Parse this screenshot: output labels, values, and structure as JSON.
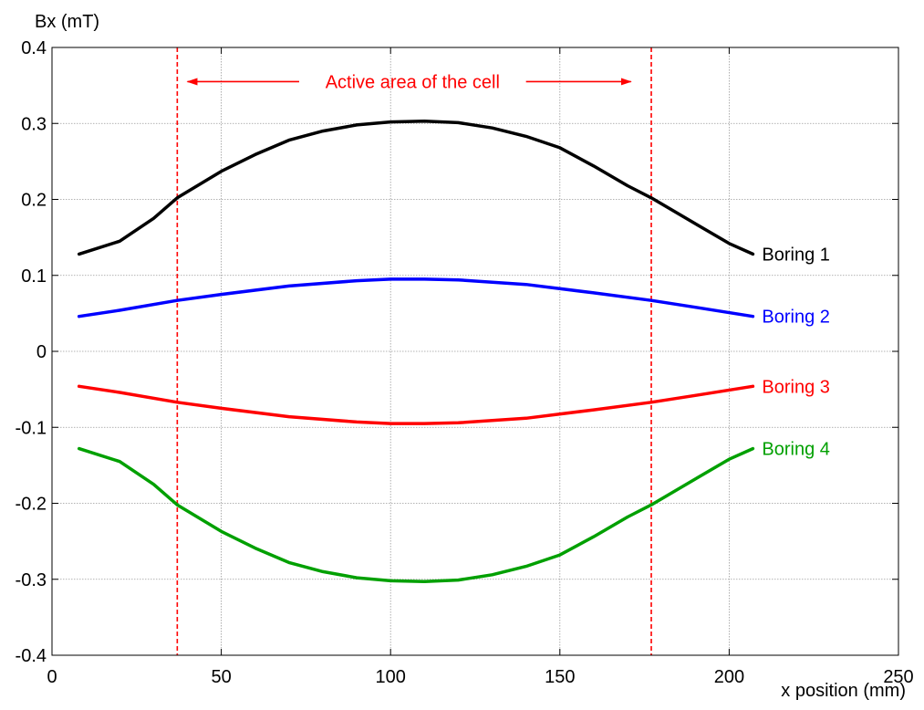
{
  "chart_data": {
    "type": "line",
    "ylabel": "Bx (mT)",
    "xlabel": "x position (mm)",
    "xlim": [
      0,
      250
    ],
    "ylim": [
      -0.4,
      0.4
    ],
    "x_ticks": [
      0,
      50,
      100,
      150,
      200,
      250
    ],
    "x_tick_labels": [
      "0",
      "50",
      "100",
      "150",
      "200",
      "250"
    ],
    "y_ticks": [
      -0.4,
      -0.3,
      -0.2,
      -0.1,
      0,
      0.1,
      0.2,
      0.3,
      0.4
    ],
    "y_tick_labels": [
      "-0.4",
      "-0.3",
      "-0.2",
      "-0.1",
      "0",
      "0.1",
      "0.2",
      "0.3",
      "0.4"
    ],
    "grid": true,
    "colors": {
      "series1": "#000000",
      "series2": "#0000ff",
      "series3": "#ff0000",
      "series4": "#00a000",
      "annotation": "#ff0000",
      "grid": "#9a9a9a"
    },
    "series": [
      {
        "name": "Boring 1",
        "color": "#000000",
        "x": [
          8,
          20,
          30,
          37,
          50,
          60,
          70,
          80,
          90,
          100,
          110,
          120,
          130,
          140,
          150,
          160,
          170,
          177,
          190,
          200,
          207
        ],
        "y": [
          0.128,
          0.145,
          0.175,
          0.202,
          0.237,
          0.259,
          0.278,
          0.29,
          0.298,
          0.302,
          0.303,
          0.301,
          0.294,
          0.283,
          0.268,
          0.244,
          0.218,
          0.202,
          0.168,
          0.142,
          0.128
        ]
      },
      {
        "name": "Boring 2",
        "color": "#0000ff",
        "x": [
          8,
          20,
          37,
          50,
          70,
          90,
          100,
          110,
          120,
          140,
          160,
          177,
          190,
          207
        ],
        "y": [
          0.046,
          0.054,
          0.067,
          0.075,
          0.086,
          0.093,
          0.095,
          0.095,
          0.094,
          0.088,
          0.077,
          0.067,
          0.058,
          0.046
        ]
      },
      {
        "name": "Boring 3",
        "color": "#ff0000",
        "x": [
          8,
          20,
          37,
          50,
          70,
          90,
          100,
          110,
          120,
          140,
          160,
          177,
          190,
          207
        ],
        "y": [
          -0.046,
          -0.054,
          -0.067,
          -0.075,
          -0.086,
          -0.093,
          -0.095,
          -0.095,
          -0.094,
          -0.088,
          -0.077,
          -0.067,
          -0.058,
          -0.046
        ]
      },
      {
        "name": "Boring 4",
        "color": "#00a000",
        "x": [
          8,
          20,
          30,
          37,
          50,
          60,
          70,
          80,
          90,
          100,
          110,
          120,
          130,
          140,
          150,
          160,
          170,
          177,
          190,
          200,
          207
        ],
        "y": [
          -0.128,
          -0.145,
          -0.175,
          -0.202,
          -0.237,
          -0.259,
          -0.278,
          -0.29,
          -0.298,
          -0.302,
          -0.303,
          -0.301,
          -0.294,
          -0.283,
          -0.268,
          -0.244,
          -0.218,
          -0.202,
          -0.168,
          -0.142,
          -0.128
        ]
      }
    ],
    "vlines": [
      {
        "x": 37,
        "color": "#ff0000",
        "style": "dashed"
      },
      {
        "x": 177,
        "color": "#ff0000",
        "style": "dashed"
      }
    ],
    "annotation": {
      "text": "Active area of the cell",
      "color": "#ff0000",
      "arrow_y": 0.355,
      "left_arrow_x": [
        73,
        40
      ],
      "right_arrow_x": [
        140,
        171
      ]
    }
  }
}
